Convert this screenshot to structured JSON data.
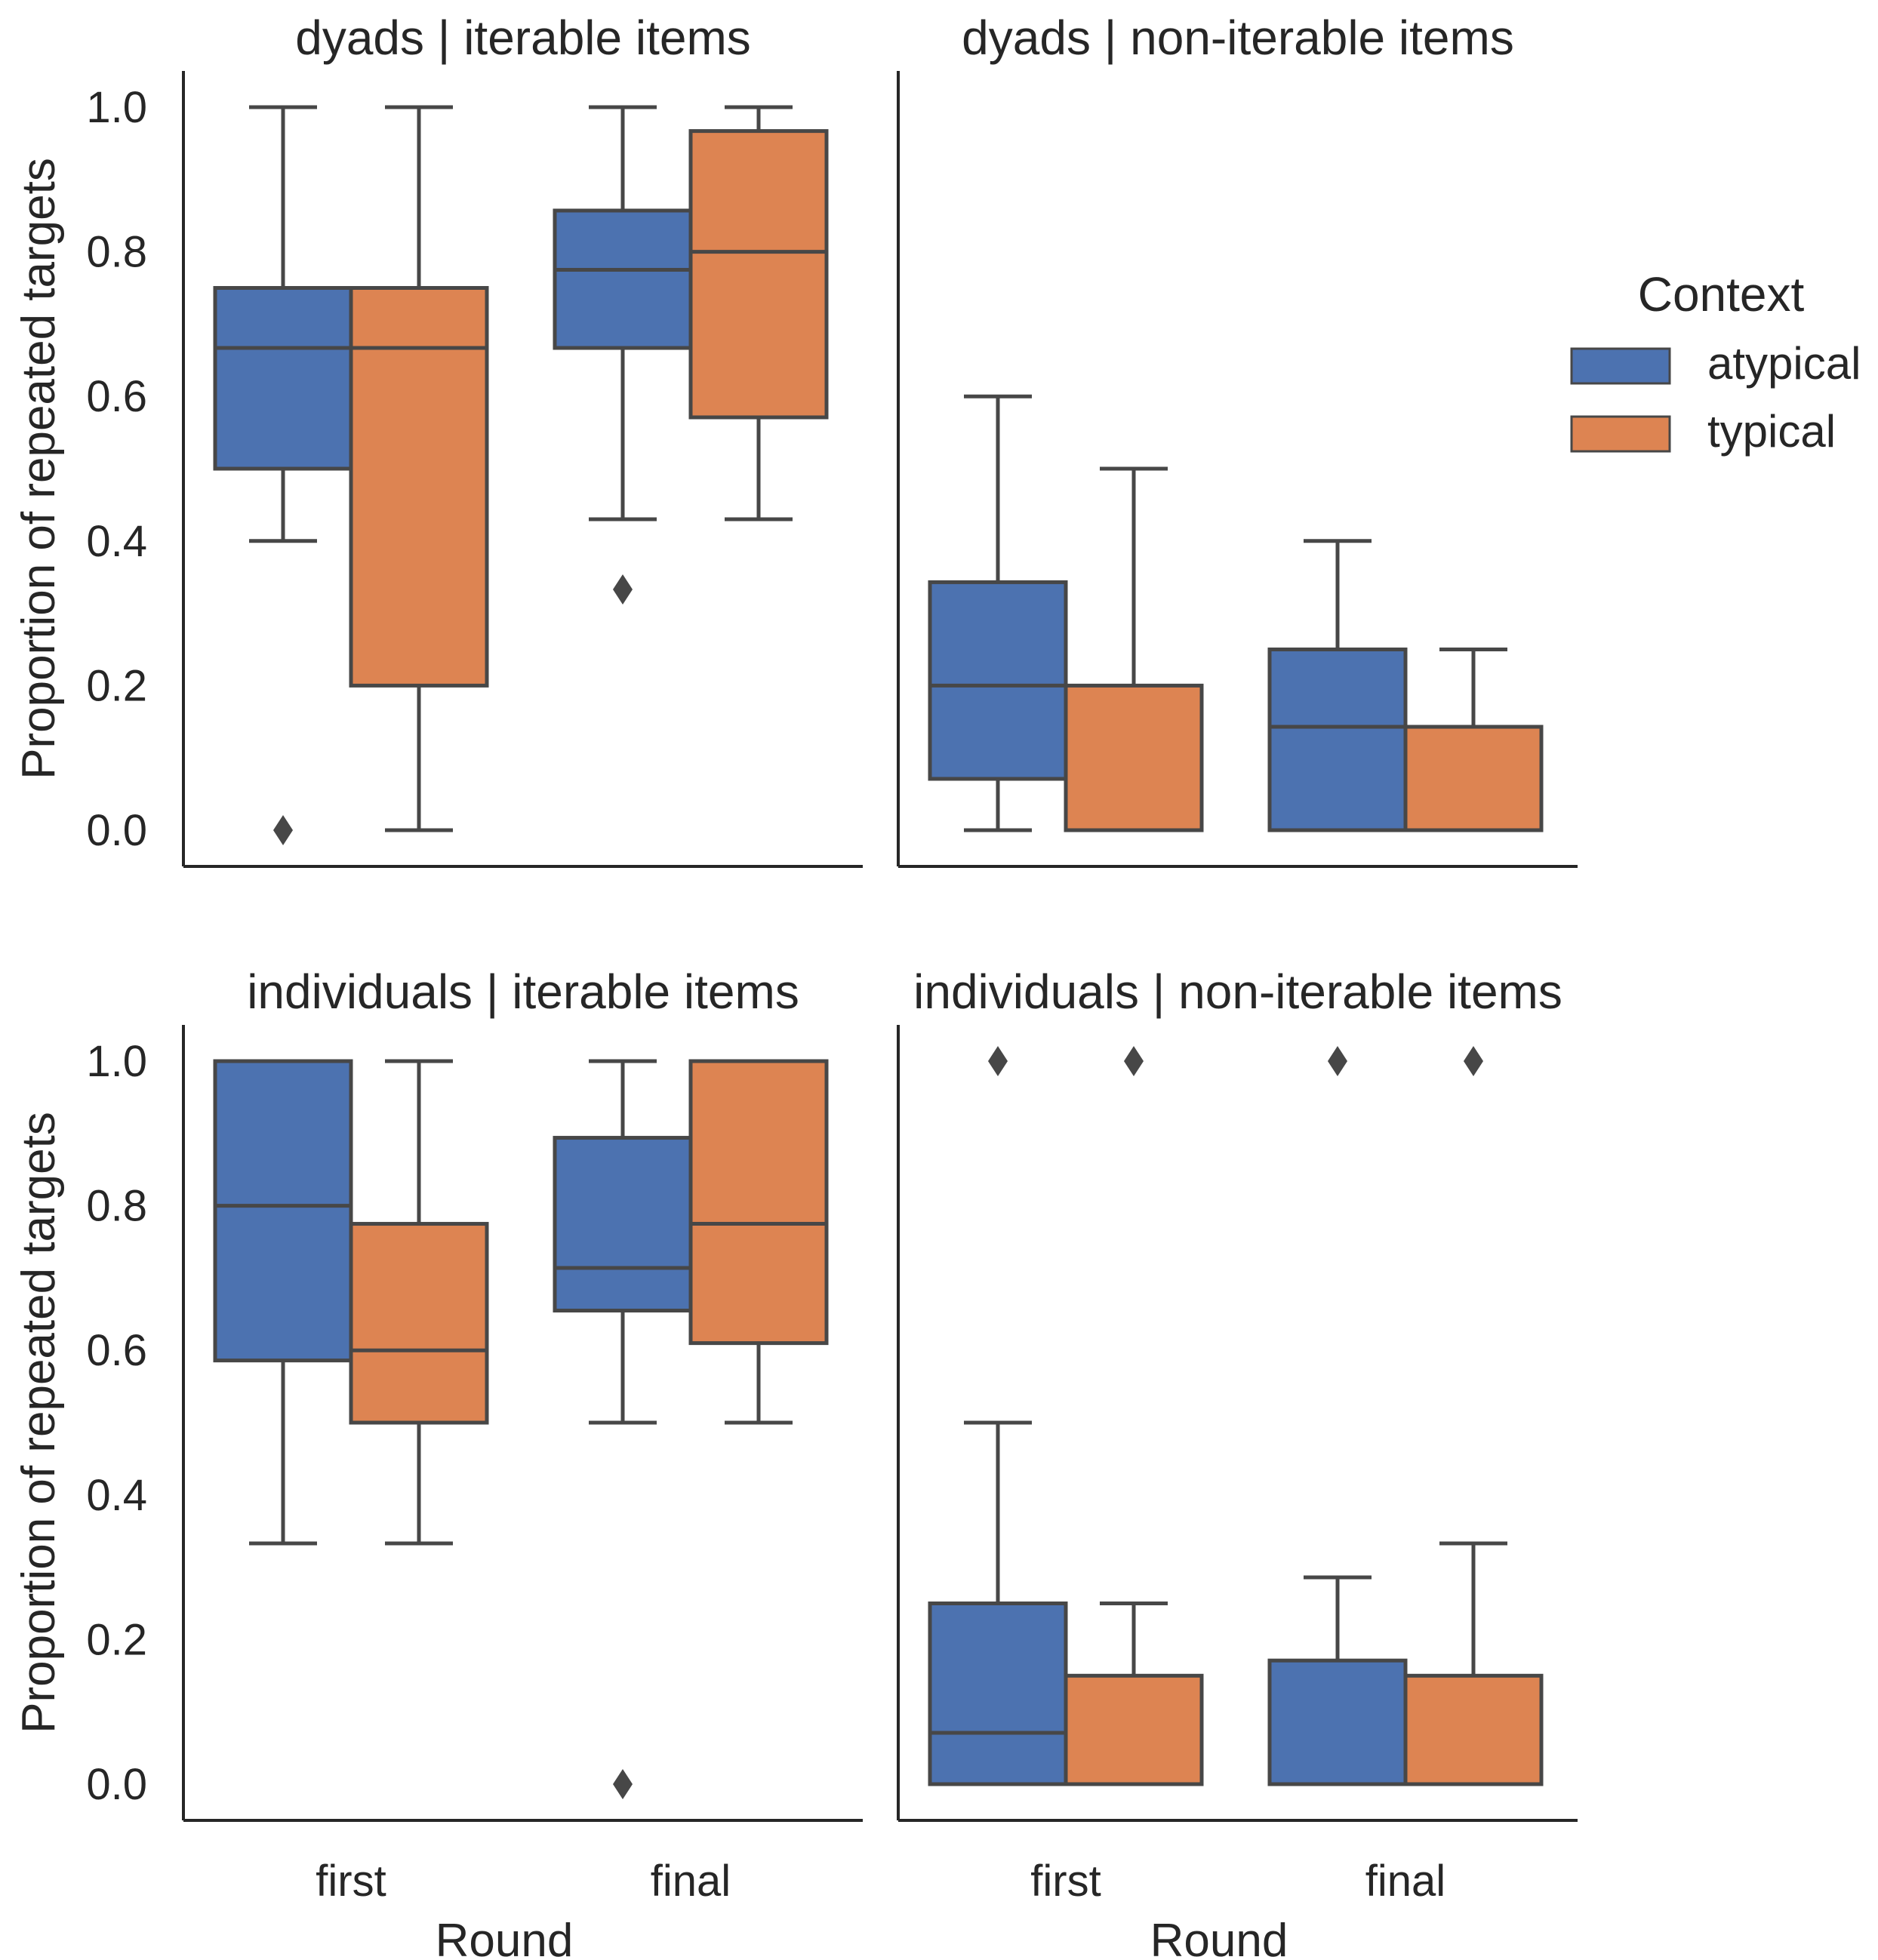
{
  "chart_data": {
    "type": "boxplot",
    "ylabel": "Proportion of repeated targets",
    "xlabel": "Round",
    "ylim": [
      0.0,
      1.0
    ],
    "yticks": [
      "0.0",
      "0.2",
      "0.4",
      "0.6",
      "0.8",
      "1.0"
    ],
    "categories": [
      "first",
      "final"
    ],
    "legend": {
      "title": "Context",
      "position": "right",
      "entries": [
        {
          "label": "atypical",
          "color": "#4C72B0"
        },
        {
          "label": "typical",
          "color": "#DD8452"
        }
      ]
    },
    "panels": [
      {
        "title": "dyads | iterable items",
        "row": 0,
        "col": 0,
        "boxes": [
          {
            "round": "first",
            "context": "atypical",
            "whislo": 0.4,
            "q1": 0.5,
            "med": 0.667,
            "q3": 0.75,
            "whishi": 1.0,
            "fliers": [
              0.0
            ]
          },
          {
            "round": "first",
            "context": "typical",
            "whislo": 0.0,
            "q1": 0.2,
            "med": 0.667,
            "q3": 0.75,
            "whishi": 1.0,
            "fliers": []
          },
          {
            "round": "final",
            "context": "atypical",
            "whislo": 0.43,
            "q1": 0.667,
            "med": 0.775,
            "q3": 0.857,
            "whishi": 1.0,
            "fliers": [
              0.333
            ]
          },
          {
            "round": "final",
            "context": "typical",
            "whislo": 0.43,
            "q1": 0.571,
            "med": 0.8,
            "q3": 0.967,
            "whishi": 1.0,
            "fliers": []
          }
        ]
      },
      {
        "title": "dyads | non-iterable items",
        "row": 0,
        "col": 1,
        "boxes": [
          {
            "round": "first",
            "context": "atypical",
            "whislo": 0.0,
            "q1": 0.071,
            "med": 0.2,
            "q3": 0.343,
            "whishi": 0.6,
            "fliers": []
          },
          {
            "round": "first",
            "context": "typical",
            "whislo": 0.0,
            "q1": 0.0,
            "med": 0.0,
            "q3": 0.2,
            "whishi": 0.5,
            "fliers": []
          },
          {
            "round": "final",
            "context": "atypical",
            "whislo": 0.0,
            "q1": 0.0,
            "med": 0.143,
            "q3": 0.25,
            "whishi": 0.4,
            "fliers": []
          },
          {
            "round": "final",
            "context": "typical",
            "whislo": 0.0,
            "q1": 0.0,
            "med": 0.0,
            "q3": 0.143,
            "whishi": 0.25,
            "fliers": []
          }
        ]
      },
      {
        "title": "individuals | iterable items",
        "row": 1,
        "col": 0,
        "boxes": [
          {
            "round": "first",
            "context": "atypical",
            "whislo": 0.333,
            "q1": 0.586,
            "med": 0.8,
            "q3": 1.0,
            "whishi": 1.0,
            "fliers": []
          },
          {
            "round": "first",
            "context": "typical",
            "whislo": 0.333,
            "q1": 0.5,
            "med": 0.6,
            "q3": 0.775,
            "whishi": 1.0,
            "fliers": []
          },
          {
            "round": "final",
            "context": "atypical",
            "whislo": 0.5,
            "q1": 0.655,
            "med": 0.714,
            "q3": 0.894,
            "whishi": 1.0,
            "fliers": [
              0.0
            ]
          },
          {
            "round": "final",
            "context": "typical",
            "whislo": 0.5,
            "q1": 0.61,
            "med": 0.775,
            "q3": 1.0,
            "whishi": 1.0,
            "fliers": []
          }
        ]
      },
      {
        "title": "individuals | non-iterable items",
        "row": 1,
        "col": 1,
        "boxes": [
          {
            "round": "first",
            "context": "atypical",
            "whislo": 0.0,
            "q1": 0.0,
            "med": 0.071,
            "q3": 0.25,
            "whishi": 0.5,
            "fliers": [
              1.0
            ]
          },
          {
            "round": "first",
            "context": "typical",
            "whislo": 0.0,
            "q1": 0.0,
            "med": 0.0,
            "q3": 0.15,
            "whishi": 0.25,
            "fliers": [
              1.0
            ]
          },
          {
            "round": "final",
            "context": "atypical",
            "whislo": 0.0,
            "q1": 0.0,
            "med": 0.0,
            "q3": 0.171,
            "whishi": 0.286,
            "fliers": [
              1.0
            ]
          },
          {
            "round": "final",
            "context": "typical",
            "whislo": 0.0,
            "q1": 0.0,
            "med": 0.0,
            "q3": 0.15,
            "whishi": 0.333,
            "fliers": [
              1.0
            ]
          }
        ]
      }
    ]
  }
}
